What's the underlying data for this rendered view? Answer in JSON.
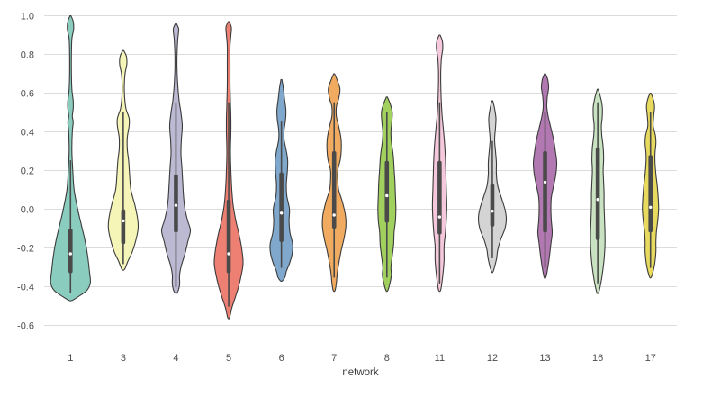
{
  "figure": {
    "xlabel": "network",
    "background_color": "#ffffff",
    "gridline_color": "#dcdcdc",
    "outline_color": "#3b3b3b",
    "box_color": "#4a4a4a",
    "median_dot_color": "#ffffff",
    "tick_label_color": "#4d4d4d"
  },
  "chart_data": {
    "type": "violin",
    "title": "",
    "xlabel": "network",
    "ylabel": "",
    "ylim": [
      -0.7,
      1.05
    ],
    "grid": true,
    "legend": "none",
    "yticks": [
      "1.0",
      "0.8",
      "0.6",
      "0.4",
      "0.2",
      "0.0",
      "-0.2",
      "-0.4",
      "-0.6"
    ],
    "categories": [
      "1",
      "3",
      "4",
      "5",
      "6",
      "7",
      "8",
      "11",
      "12",
      "13",
      "16",
      "17"
    ],
    "violins": [
      {
        "network": "1",
        "color": "#8accbe",
        "median": -0.23,
        "q1": -0.33,
        "q3": -0.1,
        "whisker_low": -0.43,
        "whisker_high": 0.25,
        "range": [
          -0.47,
          1.0
        ],
        "density_profile": [
          [
            1.0,
            0.5
          ],
          [
            0.97,
            3
          ],
          [
            0.93,
            3.5
          ],
          [
            0.88,
            1.5
          ],
          [
            0.8,
            1
          ],
          [
            0.7,
            1
          ],
          [
            0.62,
            1.5
          ],
          [
            0.56,
            3
          ],
          [
            0.52,
            3
          ],
          [
            0.48,
            2
          ],
          [
            0.45,
            3
          ],
          [
            0.4,
            2
          ],
          [
            0.3,
            1.5
          ],
          [
            0.2,
            2.5
          ],
          [
            0.1,
            4
          ],
          [
            0.0,
            8
          ],
          [
            -0.08,
            12
          ],
          [
            -0.16,
            16
          ],
          [
            -0.24,
            19
          ],
          [
            -0.32,
            21
          ],
          [
            -0.38,
            22
          ],
          [
            -0.42,
            18
          ],
          [
            -0.45,
            9
          ],
          [
            -0.47,
            2
          ]
        ]
      },
      {
        "network": "3",
        "color": "#f5f5b8",
        "median": -0.06,
        "q1": -0.18,
        "q3": 0.0,
        "whisker_low": -0.28,
        "whisker_high": 0.5,
        "range": [
          -0.31,
          0.82
        ],
        "density_profile": [
          [
            0.82,
            0.5
          ],
          [
            0.79,
            3.5
          ],
          [
            0.75,
            4
          ],
          [
            0.7,
            2
          ],
          [
            0.64,
            1.2
          ],
          [
            0.58,
            1.5
          ],
          [
            0.52,
            3
          ],
          [
            0.47,
            6.5
          ],
          [
            0.43,
            6.5
          ],
          [
            0.37,
            4.5
          ],
          [
            0.31,
            4.5
          ],
          [
            0.25,
            6
          ],
          [
            0.18,
            7
          ],
          [
            0.1,
            8.5
          ],
          [
            0.02,
            13
          ],
          [
            -0.05,
            16
          ],
          [
            -0.1,
            16.5
          ],
          [
            -0.16,
            14
          ],
          [
            -0.22,
            10
          ],
          [
            -0.27,
            5
          ],
          [
            -0.31,
            1.5
          ]
        ]
      },
      {
        "network": "4",
        "color": "#bcb9d3",
        "median": 0.02,
        "q1": -0.12,
        "q3": 0.18,
        "whisker_low": -0.4,
        "whisker_high": 0.55,
        "range": [
          -0.43,
          0.96
        ],
        "density_profile": [
          [
            0.96,
            0.5
          ],
          [
            0.93,
            3
          ],
          [
            0.88,
            2
          ],
          [
            0.8,
            1.2
          ],
          [
            0.72,
            1.2
          ],
          [
            0.64,
            2
          ],
          [
            0.56,
            3.5
          ],
          [
            0.5,
            5.5
          ],
          [
            0.43,
            7
          ],
          [
            0.36,
            6
          ],
          [
            0.29,
            5.5
          ],
          [
            0.22,
            6.5
          ],
          [
            0.14,
            7.5
          ],
          [
            0.06,
            8.5
          ],
          [
            0.0,
            10
          ],
          [
            -0.06,
            13
          ],
          [
            -0.11,
            16
          ],
          [
            -0.17,
            13
          ],
          [
            -0.23,
            10
          ],
          [
            -0.29,
            6
          ],
          [
            -0.34,
            4
          ],
          [
            -0.39,
            4
          ],
          [
            -0.43,
            1.5
          ]
        ]
      },
      {
        "network": "5",
        "color": "#ee7f73",
        "median": -0.23,
        "q1": -0.33,
        "q3": 0.05,
        "whisker_low": -0.5,
        "whisker_high": 0.55,
        "range": [
          -0.56,
          0.97
        ],
        "density_profile": [
          [
            0.97,
            0.5
          ],
          [
            0.94,
            3
          ],
          [
            0.9,
            2.5
          ],
          [
            0.84,
            1.5
          ],
          [
            0.75,
            1.5
          ],
          [
            0.65,
            1.5
          ],
          [
            0.55,
            2
          ],
          [
            0.47,
            2.5
          ],
          [
            0.4,
            2.5
          ],
          [
            0.3,
            2
          ],
          [
            0.2,
            2.5
          ],
          [
            0.1,
            3.5
          ],
          [
            0.02,
            5
          ],
          [
            -0.06,
            8
          ],
          [
            -0.14,
            12
          ],
          [
            -0.22,
            15
          ],
          [
            -0.28,
            16
          ],
          [
            -0.34,
            14
          ],
          [
            -0.4,
            11
          ],
          [
            -0.46,
            7
          ],
          [
            -0.51,
            3.5
          ],
          [
            -0.56,
            1
          ]
        ]
      },
      {
        "network": "6",
        "color": "#7fa8cc",
        "median": -0.02,
        "q1": -0.17,
        "q3": 0.19,
        "whisker_low": -0.3,
        "whisker_high": 0.45,
        "range": [
          -0.37,
          0.67
        ],
        "density_profile": [
          [
            0.67,
            0.5
          ],
          [
            0.63,
            2
          ],
          [
            0.57,
            3.5
          ],
          [
            0.51,
            5
          ],
          [
            0.46,
            4.5
          ],
          [
            0.41,
            3
          ],
          [
            0.36,
            3
          ],
          [
            0.3,
            5.5
          ],
          [
            0.25,
            7
          ],
          [
            0.19,
            6.5
          ],
          [
            0.13,
            5.5
          ],
          [
            0.07,
            6
          ],
          [
            0.0,
            9
          ],
          [
            -0.06,
            8.5
          ],
          [
            -0.12,
            9.5
          ],
          [
            -0.18,
            12.5
          ],
          [
            -0.23,
            12
          ],
          [
            -0.28,
            9
          ],
          [
            -0.32,
            5.5
          ],
          [
            -0.35,
            4
          ],
          [
            -0.37,
            1
          ]
        ]
      },
      {
        "network": "7",
        "color": "#f0ab61",
        "median": -0.03,
        "q1": -0.1,
        "q3": 0.3,
        "whisker_low": -0.35,
        "whisker_high": 0.55,
        "range": [
          -0.42,
          0.7
        ],
        "density_profile": [
          [
            0.7,
            0.5
          ],
          [
            0.66,
            4
          ],
          [
            0.62,
            6.5
          ],
          [
            0.57,
            5
          ],
          [
            0.53,
            2.5
          ],
          [
            0.48,
            2.5
          ],
          [
            0.43,
            5
          ],
          [
            0.37,
            7.5
          ],
          [
            0.32,
            8
          ],
          [
            0.26,
            7
          ],
          [
            0.2,
            4
          ],
          [
            0.15,
            4
          ],
          [
            0.1,
            5
          ],
          [
            0.04,
            9
          ],
          [
            -0.03,
            12.5
          ],
          [
            -0.09,
            13
          ],
          [
            -0.15,
            11
          ],
          [
            -0.21,
            8
          ],
          [
            -0.27,
            5.5
          ],
          [
            -0.33,
            3.5
          ],
          [
            -0.38,
            2.5
          ],
          [
            -0.42,
            1
          ]
        ]
      },
      {
        "network": "8",
        "color": "#a1d05f",
        "median": 0.07,
        "q1": -0.07,
        "q3": 0.25,
        "whisker_low": -0.35,
        "whisker_high": 0.5,
        "range": [
          -0.42,
          0.58
        ],
        "density_profile": [
          [
            0.58,
            0.5
          ],
          [
            0.54,
            4
          ],
          [
            0.5,
            6
          ],
          [
            0.45,
            5.5
          ],
          [
            0.4,
            4.5
          ],
          [
            0.35,
            5
          ],
          [
            0.28,
            7
          ],
          [
            0.21,
            8
          ],
          [
            0.14,
            9
          ],
          [
            0.07,
            9.5
          ],
          [
            0.0,
            10
          ],
          [
            -0.06,
            9.5
          ],
          [
            -0.12,
            8
          ],
          [
            -0.18,
            7.5
          ],
          [
            -0.24,
            6
          ],
          [
            -0.3,
            4.5
          ],
          [
            -0.34,
            5
          ],
          [
            -0.38,
            3.5
          ],
          [
            -0.42,
            1
          ]
        ]
      },
      {
        "network": "11",
        "color": "#f5c9db",
        "median": -0.04,
        "q1": -0.13,
        "q3": 0.25,
        "whisker_low": -0.38,
        "whisker_high": 0.55,
        "range": [
          -0.42,
          0.9
        ],
        "density_profile": [
          [
            0.9,
            0.5
          ],
          [
            0.87,
            3
          ],
          [
            0.83,
            3.5
          ],
          [
            0.78,
            2
          ],
          [
            0.7,
            1.2
          ],
          [
            0.6,
            1.5
          ],
          [
            0.5,
            2.5
          ],
          [
            0.42,
            4
          ],
          [
            0.34,
            5.5
          ],
          [
            0.26,
            6.5
          ],
          [
            0.18,
            7
          ],
          [
            0.1,
            7.5
          ],
          [
            0.02,
            8
          ],
          [
            -0.05,
            7.5
          ],
          [
            -0.12,
            6.5
          ],
          [
            -0.19,
            5
          ],
          [
            -0.26,
            5
          ],
          [
            -0.32,
            4
          ],
          [
            -0.38,
            2.5
          ],
          [
            -0.42,
            1
          ]
        ]
      },
      {
        "network": "12",
        "color": "#d4d4d4",
        "median": -0.01,
        "q1": -0.09,
        "q3": 0.13,
        "whisker_low": -0.25,
        "whisker_high": 0.35,
        "range": [
          -0.32,
          0.56
        ],
        "density_profile": [
          [
            0.56,
            0.5
          ],
          [
            0.52,
            2.5
          ],
          [
            0.47,
            4
          ],
          [
            0.42,
            3.5
          ],
          [
            0.36,
            2.5
          ],
          [
            0.3,
            3.5
          ],
          [
            0.24,
            4.5
          ],
          [
            0.18,
            4.5
          ],
          [
            0.12,
            6
          ],
          [
            0.06,
            10
          ],
          [
            0.0,
            14
          ],
          [
            -0.05,
            15.5
          ],
          [
            -0.1,
            14
          ],
          [
            -0.16,
            9
          ],
          [
            -0.21,
            6
          ],
          [
            -0.26,
            4.5
          ],
          [
            -0.32,
            1
          ]
        ]
      },
      {
        "network": "13",
        "color": "#b278b2",
        "median": 0.14,
        "q1": -0.12,
        "q3": 0.3,
        "whisker_low": -0.3,
        "whisker_high": 0.5,
        "range": [
          -0.35,
          0.7
        ],
        "density_profile": [
          [
            0.7,
            0.5
          ],
          [
            0.67,
            3
          ],
          [
            0.63,
            4
          ],
          [
            0.58,
            2.5
          ],
          [
            0.53,
            2
          ],
          [
            0.48,
            3.5
          ],
          [
            0.42,
            6.5
          ],
          [
            0.36,
            9.5
          ],
          [
            0.3,
            11.5
          ],
          [
            0.24,
            13
          ],
          [
            0.18,
            12
          ],
          [
            0.12,
            9.5
          ],
          [
            0.06,
            7
          ],
          [
            0.0,
            6.5
          ],
          [
            -0.06,
            7
          ],
          [
            -0.12,
            8
          ],
          [
            -0.18,
            6.5
          ],
          [
            -0.24,
            5
          ],
          [
            -0.29,
            3.5
          ],
          [
            -0.35,
            1
          ]
        ]
      },
      {
        "network": "16",
        "color": "#c9e2c1",
        "median": 0.05,
        "q1": -0.16,
        "q3": 0.32,
        "whisker_low": -0.38,
        "whisker_high": 0.55,
        "range": [
          -0.43,
          0.62
        ],
        "density_profile": [
          [
            0.62,
            0.5
          ],
          [
            0.58,
            3
          ],
          [
            0.53,
            5
          ],
          [
            0.48,
            5
          ],
          [
            0.43,
            4
          ],
          [
            0.38,
            4.5
          ],
          [
            0.32,
            6
          ],
          [
            0.26,
            6.5
          ],
          [
            0.2,
            6
          ],
          [
            0.14,
            6.5
          ],
          [
            0.08,
            7
          ],
          [
            0.02,
            7
          ],
          [
            -0.05,
            7.5
          ],
          [
            -0.12,
            8
          ],
          [
            -0.19,
            8
          ],
          [
            -0.26,
            7
          ],
          [
            -0.32,
            5.5
          ],
          [
            -0.38,
            3.5
          ],
          [
            -0.43,
            1
          ]
        ]
      },
      {
        "network": "17",
        "color": "#e7da5f",
        "median": 0.01,
        "q1": -0.12,
        "q3": 0.28,
        "whisker_low": -0.3,
        "whisker_high": 0.5,
        "range": [
          -0.35,
          0.6
        ],
        "density_profile": [
          [
            0.6,
            0.5
          ],
          [
            0.57,
            3
          ],
          [
            0.53,
            4.5
          ],
          [
            0.48,
            3.5
          ],
          [
            0.43,
            3
          ],
          [
            0.38,
            5.5
          ],
          [
            0.34,
            6
          ],
          [
            0.29,
            5
          ],
          [
            0.24,
            5
          ],
          [
            0.18,
            6
          ],
          [
            0.12,
            7.5
          ],
          [
            0.06,
            8.5
          ],
          [
            0.0,
            9
          ],
          [
            -0.06,
            8
          ],
          [
            -0.12,
            6.5
          ],
          [
            -0.17,
            6
          ],
          [
            -0.22,
            6
          ],
          [
            -0.27,
            5
          ],
          [
            -0.31,
            3.5
          ],
          [
            -0.35,
            1
          ]
        ]
      }
    ]
  }
}
